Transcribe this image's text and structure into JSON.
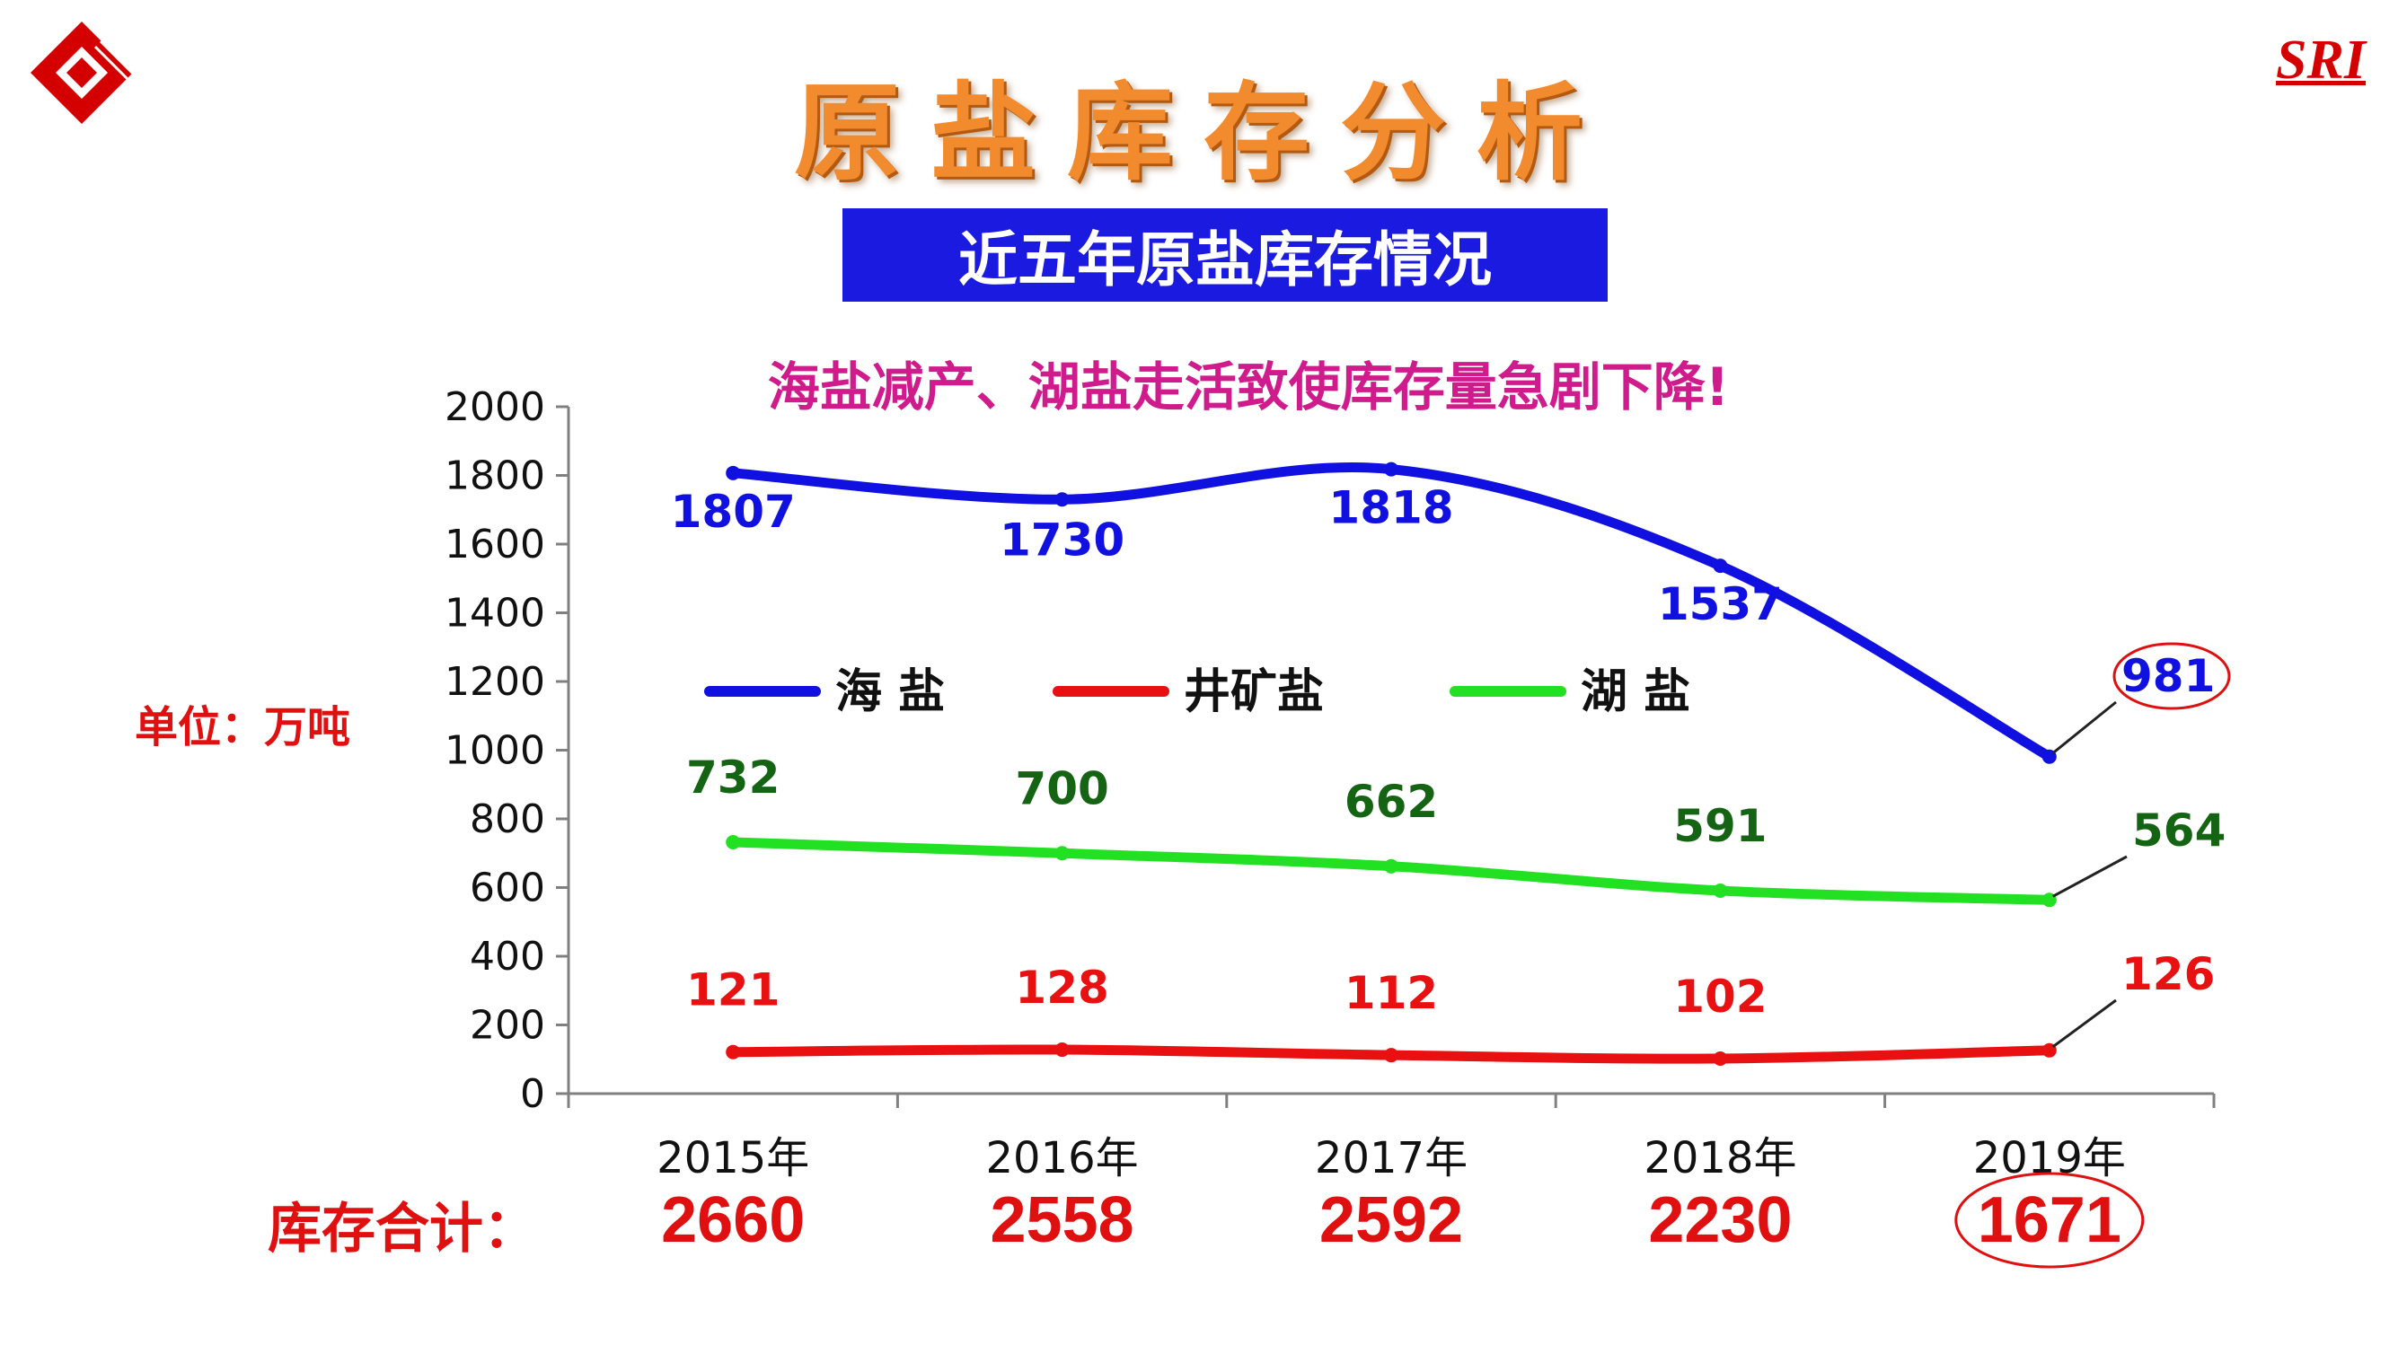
{
  "slide": {
    "title": "原盐库存分析",
    "subtitle": "近五年原盐库存情况",
    "headline": "海盐减产、湖盐走活致使库存量急剧下降!",
    "brand": "SRI",
    "unit_label": "单位：万吨",
    "total_label": "库存合计："
  },
  "colors": {
    "sea_salt": "#1010e0",
    "well_salt": "#e81010",
    "lake_salt": "#22e022",
    "lake_label": "#146414",
    "accent_red": "#e01010"
  },
  "chart_data": {
    "type": "line",
    "categories": [
      "2015年",
      "2016年",
      "2017年",
      "2018年",
      "2019年"
    ],
    "y_ticks": [
      "0",
      "200",
      "400",
      "600",
      "800",
      "1000",
      "1200",
      "1400",
      "1600",
      "1800",
      "2000"
    ],
    "ylim": [
      0,
      2000
    ],
    "grid": false,
    "legend_position": "center",
    "series": [
      {
        "name": "海 盐",
        "values": [
          1807,
          1730,
          1818,
          1537,
          981
        ],
        "color": "#1010e0"
      },
      {
        "name": "井矿盐",
        "values": [
          121,
          128,
          112,
          102,
          126
        ],
        "color": "#e81010"
      },
      {
        "name": "湖 盐",
        "values": [
          732,
          700,
          662,
          591,
          564
        ],
        "color": "#22e022"
      }
    ],
    "totals": [
      "2660",
      "2558",
      "2592",
      "2230",
      "1671"
    ],
    "highlighted": [
      "981",
      "1671"
    ]
  }
}
